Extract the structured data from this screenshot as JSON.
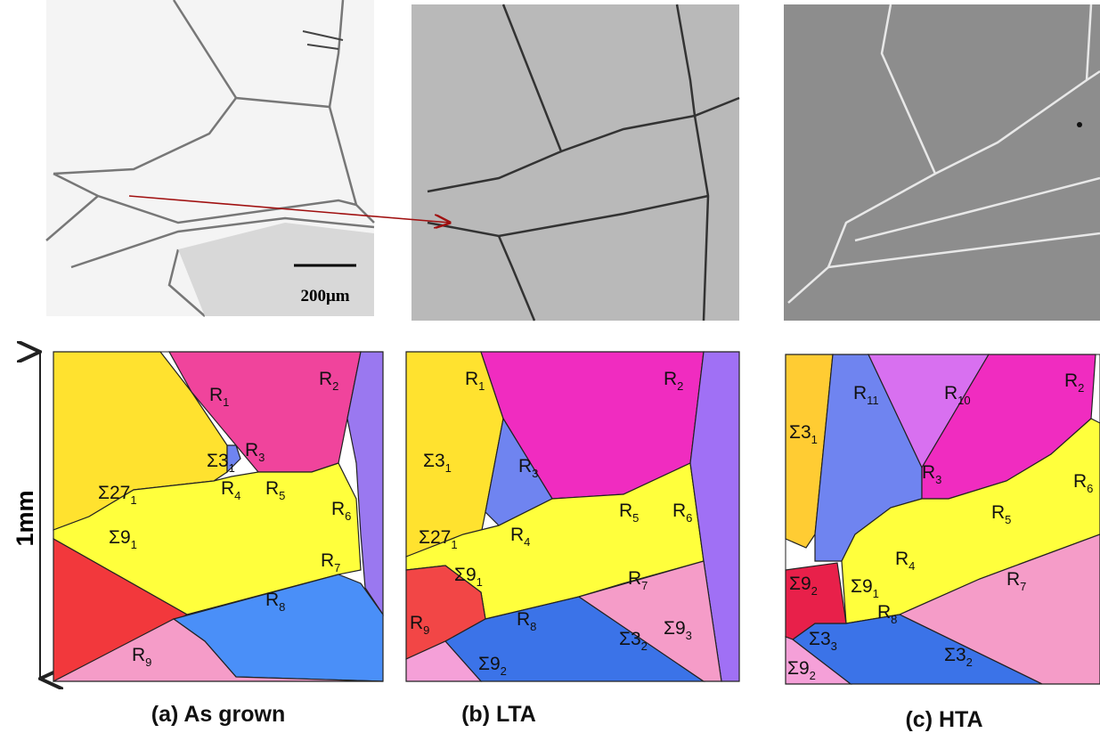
{
  "figure": {
    "scale_bar": "200μm",
    "scale": "1mm",
    "panels": [
      {
        "caption": "(a) As grown",
        "grains": [
          {
            "symbol": "R",
            "index": "1"
          },
          {
            "symbol": "R",
            "index": "2"
          },
          {
            "symbol": "R",
            "index": "3"
          },
          {
            "symbol": "Σ3",
            "index": "1"
          },
          {
            "symbol": "Σ27",
            "index": "1"
          },
          {
            "symbol": "R",
            "index": "4"
          },
          {
            "symbol": "R",
            "index": "5"
          },
          {
            "symbol": "R",
            "index": "6"
          },
          {
            "symbol": "Σ9",
            "index": "1"
          },
          {
            "symbol": "R",
            "index": "7"
          },
          {
            "symbol": "R",
            "index": "8"
          },
          {
            "symbol": "R",
            "index": "9"
          }
        ]
      },
      {
        "caption": "(b) LTA",
        "grains": [
          {
            "symbol": "R",
            "index": "1"
          },
          {
            "symbol": "R",
            "index": "2"
          },
          {
            "symbol": "Σ3",
            "index": "1"
          },
          {
            "symbol": "R",
            "index": "3"
          },
          {
            "symbol": "Σ27",
            "index": "1"
          },
          {
            "symbol": "R",
            "index": "4"
          },
          {
            "symbol": "R",
            "index": "5"
          },
          {
            "symbol": "R",
            "index": "6"
          },
          {
            "symbol": "Σ9",
            "index": "1"
          },
          {
            "symbol": "R",
            "index": "7"
          },
          {
            "symbol": "R",
            "index": "9"
          },
          {
            "symbol": "R",
            "index": "8"
          },
          {
            "symbol": "Σ3",
            "index": "2"
          },
          {
            "symbol": "Σ9",
            "index": "3"
          },
          {
            "symbol": "Σ9",
            "index": "2"
          }
        ]
      },
      {
        "caption": "(c) HTA",
        "grains": [
          {
            "symbol": "Σ3",
            "index": "1"
          },
          {
            "symbol": "R",
            "index": "11"
          },
          {
            "symbol": "R",
            "index": "10"
          },
          {
            "symbol": "R",
            "index": "2"
          },
          {
            "symbol": "R",
            "index": "3"
          },
          {
            "symbol": "R",
            "index": "6"
          },
          {
            "symbol": "R",
            "index": "5"
          },
          {
            "symbol": "R",
            "index": "4"
          },
          {
            "symbol": "Σ9",
            "index": "2"
          },
          {
            "symbol": "Σ9",
            "index": "1"
          },
          {
            "symbol": "R",
            "index": "7"
          },
          {
            "symbol": "R",
            "index": "8"
          },
          {
            "symbol": "Σ3",
            "index": "3"
          },
          {
            "symbol": "Σ3",
            "index": "2"
          },
          {
            "symbol": "Σ9",
            "index": "2"
          }
        ]
      }
    ]
  }
}
